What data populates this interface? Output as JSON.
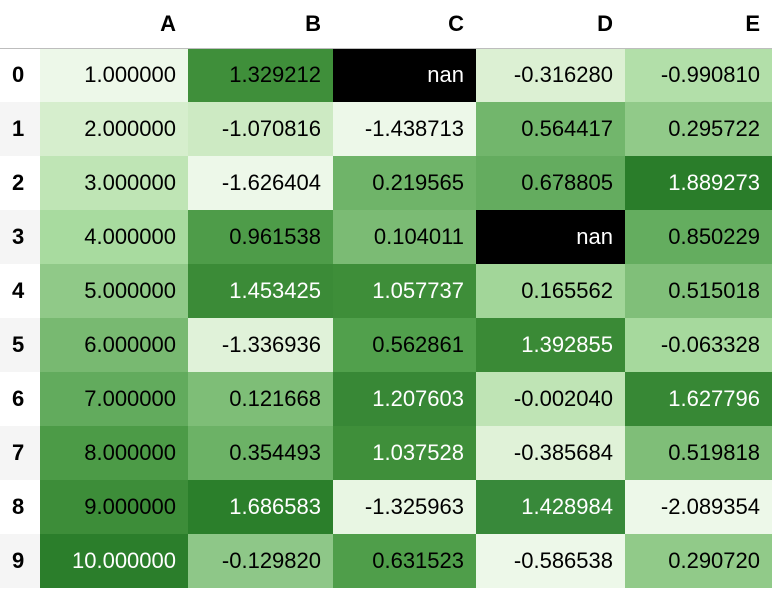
{
  "table": {
    "columns": [
      "A",
      "B",
      "C",
      "D",
      "E"
    ],
    "index": [
      "0",
      "1",
      "2",
      "3",
      "4",
      "5",
      "6",
      "7",
      "8",
      "9"
    ],
    "rows": [
      {
        "cells": [
          "1.000000",
          "1.329212",
          "nan",
          "-0.316280",
          "-0.990810"
        ],
        "bg": [
          "#edf8e9",
          "#3f8f3a",
          "#000000",
          "#dcf0d3",
          "#b2dfa9"
        ],
        "fg": [
          "#000000",
          "#000000",
          "#ffffff",
          "#000000",
          "#000000"
        ]
      },
      {
        "cells": [
          "2.000000",
          "-1.070816",
          "-1.438713",
          "0.564417",
          "0.295722"
        ],
        "bg": [
          "#d6eecd",
          "#cdeac3",
          "#edf8e9",
          "#72b66c",
          "#91ca89"
        ],
        "fg": [
          "#000000",
          "#000000",
          "#000000",
          "#000000",
          "#000000"
        ]
      },
      {
        "cells": [
          "3.000000",
          "-1.626404",
          "0.219565",
          "0.678805",
          "1.889273"
        ],
        "bg": [
          "#bfe5b5",
          "#edf8e9",
          "#6fb469",
          "#64ac5f",
          "#2a7d2a"
        ],
        "fg": [
          "#000000",
          "#000000",
          "#000000",
          "#000000",
          "#ffffff"
        ]
      },
      {
        "cells": [
          "4.000000",
          "0.961538",
          "0.104011",
          "nan",
          "0.850229"
        ],
        "bg": [
          "#a8db9f",
          "#4e9c49",
          "#7bbb74",
          "#000000",
          "#64ad5f"
        ],
        "fg": [
          "#000000",
          "#000000",
          "#000000",
          "#ffffff",
          "#000000"
        ]
      },
      {
        "cells": [
          "5.000000",
          "1.453425",
          "1.057737",
          "0.165562",
          "0.515018"
        ],
        "bg": [
          "#90c988",
          "#3b8b37",
          "#3e8e39",
          "#a2d699",
          "#80bf79"
        ],
        "fg": [
          "#000000",
          "#ffffff",
          "#ffffff",
          "#000000",
          "#000000"
        ]
      },
      {
        "cells": [
          "6.000000",
          "-1.336936",
          "0.562861",
          "1.392855",
          "-0.063328"
        ],
        "bg": [
          "#78b971",
          "#e0f2d9",
          "#51a04c",
          "#3a8a36",
          "#a6d99d"
        ],
        "fg": [
          "#000000",
          "#000000",
          "#000000",
          "#ffffff",
          "#000000"
        ]
      },
      {
        "cells": [
          "7.000000",
          "0.121668",
          "1.207603",
          "-0.002040",
          "1.627796"
        ],
        "bg": [
          "#62ab5d",
          "#7ebe77",
          "#388836",
          "#bfe4b5",
          "#378835"
        ],
        "fg": [
          "#000000",
          "#000000",
          "#ffffff",
          "#000000",
          "#ffffff"
        ]
      },
      {
        "cells": [
          "8.000000",
          "0.354493",
          "1.037528",
          "-0.385684",
          "0.519818"
        ],
        "bg": [
          "#4c9b47",
          "#6cb266",
          "#3f8f3a",
          "#e0f2d8",
          "#7fbe78"
        ],
        "fg": [
          "#000000",
          "#000000",
          "#ffffff",
          "#000000",
          "#000000"
        ]
      },
      {
        "cells": [
          "9.000000",
          "1.686583",
          "-1.325963",
          "1.428984",
          "-2.089354"
        ],
        "bg": [
          "#3d8d39",
          "#2b7f2b",
          "#e8f6e3",
          "#38893a",
          "#edf8e9"
        ],
        "fg": [
          "#000000",
          "#ffffff",
          "#000000",
          "#ffffff",
          "#000000"
        ]
      },
      {
        "cells": [
          "10.000000",
          "-0.129820",
          "0.631523",
          "-0.586538",
          "0.290720"
        ],
        "bg": [
          "#2b7e2b",
          "#8ec788",
          "#4f9e4a",
          "#edf8e9",
          "#91ca89"
        ],
        "fg": [
          "#ffffff",
          "#000000",
          "#000000",
          "#000000",
          "#000000"
        ]
      }
    ]
  }
}
